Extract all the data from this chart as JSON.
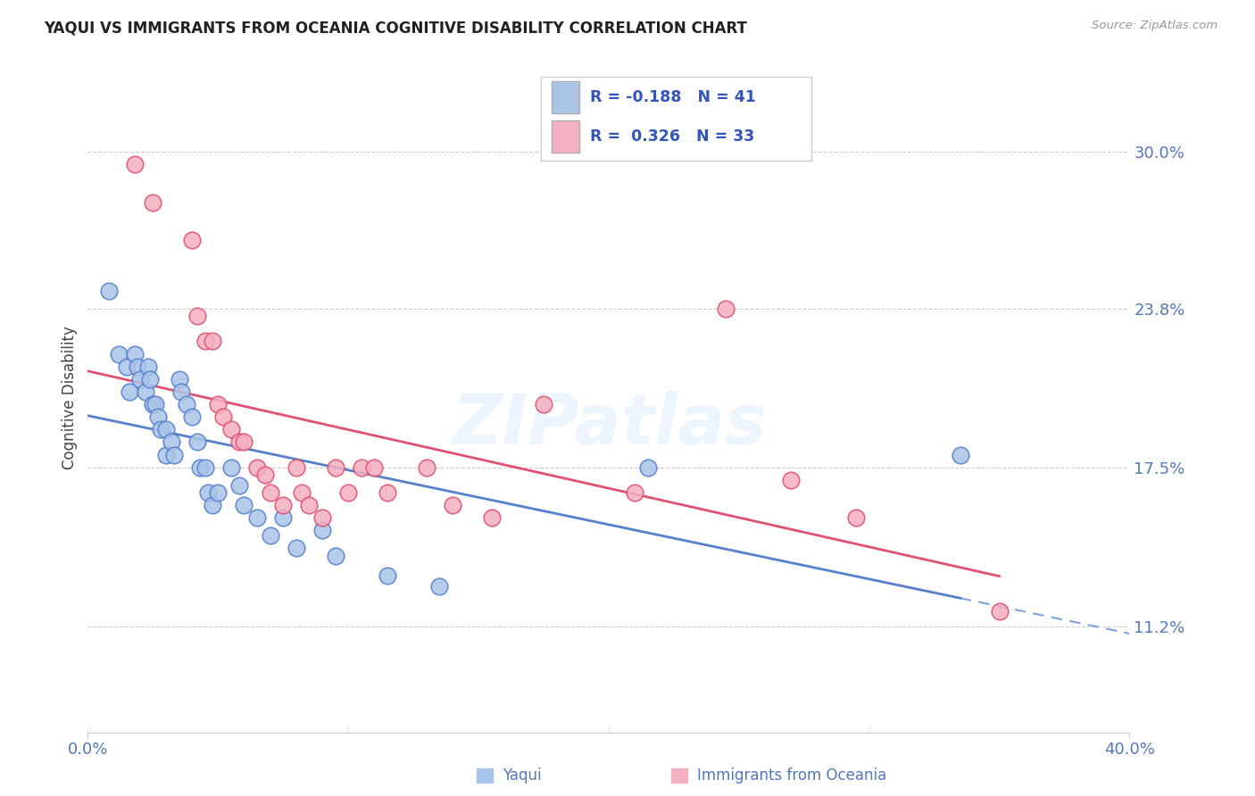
{
  "title": "YAQUI VS IMMIGRANTS FROM OCEANIA COGNITIVE DISABILITY CORRELATION CHART",
  "source": "Source: ZipAtlas.com",
  "ylabel": "Cognitive Disability",
  "yticks": [
    0.112,
    0.175,
    0.238,
    0.3
  ],
  "ytick_labels": [
    "11.2%",
    "17.5%",
    "23.8%",
    "30.0%"
  ],
  "xlim": [
    0.0,
    0.4
  ],
  "ylim": [
    0.07,
    0.335
  ],
  "legend_label1": "Yaqui",
  "legend_label2": "Immigrants from Oceania",
  "r1": -0.188,
  "n1": 41,
  "r2": 0.326,
  "n2": 33,
  "color1": "#aac4e8",
  "color2": "#f4b0c0",
  "line_color1": "#5580cc",
  "line_color2": "#e05070",
  "watermark": "ZIPatlas",
  "blue_scatter": [
    [
      0.008,
      0.245
    ],
    [
      0.012,
      0.22
    ],
    [
      0.015,
      0.215
    ],
    [
      0.016,
      0.205
    ],
    [
      0.018,
      0.22
    ],
    [
      0.019,
      0.215
    ],
    [
      0.02,
      0.21
    ],
    [
      0.022,
      0.205
    ],
    [
      0.023,
      0.215
    ],
    [
      0.024,
      0.21
    ],
    [
      0.025,
      0.2
    ],
    [
      0.026,
      0.2
    ],
    [
      0.027,
      0.195
    ],
    [
      0.028,
      0.19
    ],
    [
      0.03,
      0.19
    ],
    [
      0.03,
      0.18
    ],
    [
      0.032,
      0.185
    ],
    [
      0.033,
      0.18
    ],
    [
      0.035,
      0.21
    ],
    [
      0.036,
      0.205
    ],
    [
      0.038,
      0.2
    ],
    [
      0.04,
      0.195
    ],
    [
      0.042,
      0.185
    ],
    [
      0.043,
      0.175
    ],
    [
      0.045,
      0.175
    ],
    [
      0.046,
      0.165
    ],
    [
      0.048,
      0.16
    ],
    [
      0.05,
      0.165
    ],
    [
      0.055,
      0.175
    ],
    [
      0.058,
      0.168
    ],
    [
      0.06,
      0.16
    ],
    [
      0.065,
      0.155
    ],
    [
      0.07,
      0.148
    ],
    [
      0.075,
      0.155
    ],
    [
      0.08,
      0.143
    ],
    [
      0.09,
      0.15
    ],
    [
      0.095,
      0.14
    ],
    [
      0.115,
      0.132
    ],
    [
      0.135,
      0.128
    ],
    [
      0.215,
      0.175
    ],
    [
      0.335,
      0.18
    ]
  ],
  "pink_scatter": [
    [
      0.018,
      0.295
    ],
    [
      0.025,
      0.28
    ],
    [
      0.04,
      0.265
    ],
    [
      0.042,
      0.235
    ],
    [
      0.045,
      0.225
    ],
    [
      0.048,
      0.225
    ],
    [
      0.05,
      0.2
    ],
    [
      0.052,
      0.195
    ],
    [
      0.055,
      0.19
    ],
    [
      0.058,
      0.185
    ],
    [
      0.06,
      0.185
    ],
    [
      0.065,
      0.175
    ],
    [
      0.068,
      0.172
    ],
    [
      0.07,
      0.165
    ],
    [
      0.075,
      0.16
    ],
    [
      0.08,
      0.175
    ],
    [
      0.082,
      0.165
    ],
    [
      0.085,
      0.16
    ],
    [
      0.09,
      0.155
    ],
    [
      0.095,
      0.175
    ],
    [
      0.1,
      0.165
    ],
    [
      0.105,
      0.175
    ],
    [
      0.11,
      0.175
    ],
    [
      0.115,
      0.165
    ],
    [
      0.13,
      0.175
    ],
    [
      0.14,
      0.16
    ],
    [
      0.155,
      0.155
    ],
    [
      0.175,
      0.2
    ],
    [
      0.21,
      0.165
    ],
    [
      0.245,
      0.238
    ],
    [
      0.27,
      0.17
    ],
    [
      0.295,
      0.155
    ],
    [
      0.35,
      0.118
    ]
  ]
}
